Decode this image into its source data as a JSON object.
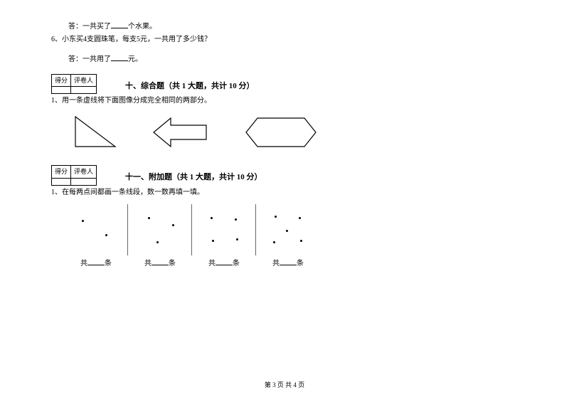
{
  "q5_answer_prefix": "答：一共买了",
  "q5_answer_suffix": "个水果。",
  "q6_num": "6、",
  "q6_text": "小东买4支圆珠笔，每支5元，一共用了多少钱？",
  "q6_answer_prefix": "答：一共用了",
  "q6_answer_suffix": "元。",
  "score_header_left": "得分",
  "score_header_right": "评卷人",
  "section10_title": "十、综合题（共 1 大题，共计 10 分）",
  "section10_q1": "1、用一条虚线将下面图像分成完全相同的两部分。",
  "section11_title": "十一、附加题（共 1 大题，共计 10 分）",
  "section11_q1": "1、在每两点间都画一条线段，数一数再填一填。",
  "count_prefix": "共",
  "count_suffix": "条",
  "footer_text": "第 3 页 共 4 页",
  "colors": {
    "text": "#000000",
    "background": "#ffffff",
    "border": "#000000",
    "divider": "#666666"
  },
  "shapes": {
    "triangle": {
      "type": "right-triangle",
      "stroke": "#000000",
      "fill": "none"
    },
    "arrow": {
      "type": "left-arrow",
      "stroke": "#000000",
      "fill": "none"
    },
    "hexagon": {
      "type": "elongated-hexagon",
      "stroke": "#000000",
      "fill": "none"
    }
  },
  "dot_groups": [
    {
      "count": 2,
      "positions": [
        [
          25,
          22
        ],
        [
          58,
          42
        ]
      ]
    },
    {
      "count": 3,
      "positions": [
        [
          28,
          18
        ],
        [
          62,
          28
        ],
        [
          40,
          52
        ]
      ]
    },
    {
      "count": 4,
      "positions": [
        [
          26,
          18
        ],
        [
          60,
          20
        ],
        [
          28,
          50
        ],
        [
          62,
          48
        ]
      ]
    },
    {
      "count": 5,
      "positions": [
        [
          26,
          16
        ],
        [
          60,
          18
        ],
        [
          42,
          36
        ],
        [
          24,
          52
        ],
        [
          62,
          50
        ]
      ]
    }
  ],
  "typography": {
    "body_fontsize": 10,
    "title_fontsize": 11,
    "footer_fontsize": 9
  }
}
